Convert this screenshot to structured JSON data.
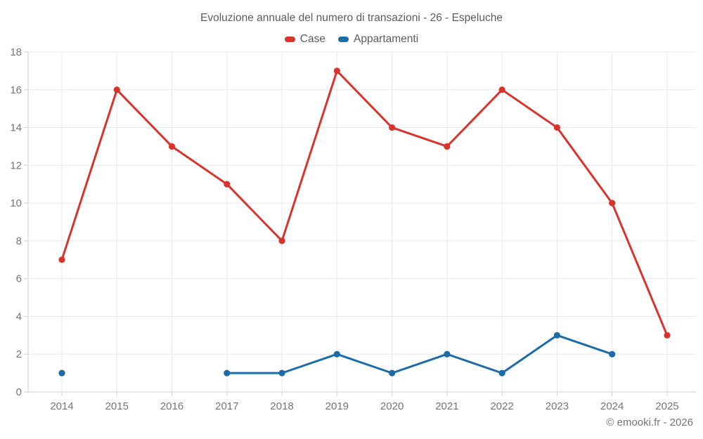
{
  "title": "Evoluzione annuale del numero di transazioni - 26 - Espeluche",
  "footer": "© emooki.fr - 2026",
  "colors": {
    "case_red": "#d8342c",
    "appartamenti_blue": "#1b6ca8",
    "grid": "#e8e8e8",
    "axis": "#cfcfcf",
    "tick_label": "#757575",
    "title_text": "#5c5c5c"
  },
  "chart_data": {
    "type": "line",
    "title": "Evoluzione annuale del numero di transazioni - 26 - Espeluche",
    "categories": [
      "2014",
      "2015",
      "2016",
      "2017",
      "2018",
      "2019",
      "2020",
      "2021",
      "2022",
      "2023",
      "2024",
      "2025"
    ],
    "series": [
      {
        "name": "Case",
        "color": "#d8342c",
        "values": [
          7,
          16,
          13,
          11,
          8,
          17,
          14,
          13,
          16,
          14,
          10,
          3
        ]
      },
      {
        "name": "Appartamenti",
        "color": "#1b6ca8",
        "values": [
          1,
          null,
          null,
          1,
          1,
          2,
          1,
          2,
          1,
          3,
          2,
          null
        ]
      }
    ],
    "xlabel": "",
    "ylabel": "",
    "ylim": [
      0,
      18
    ],
    "y_tick_step": 2,
    "grid": true,
    "legend_position": "top"
  }
}
